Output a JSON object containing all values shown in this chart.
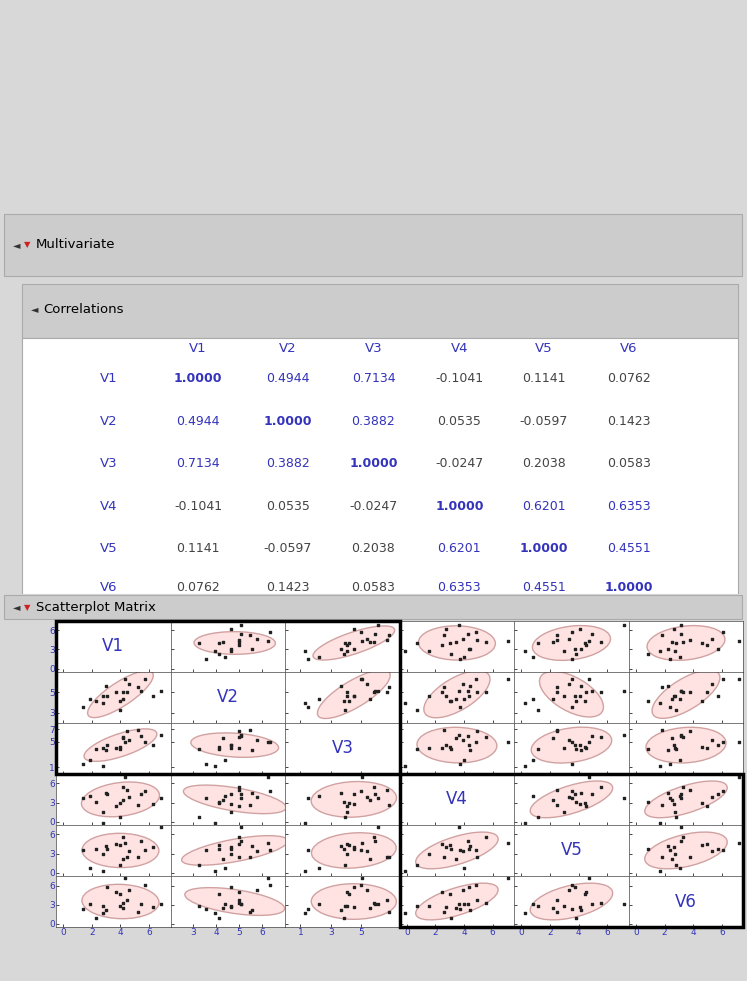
{
  "variables": [
    "V1",
    "V2",
    "V3",
    "V4",
    "V5",
    "V6"
  ],
  "correlations": [
    [
      1.0,
      0.4944,
      0.7134,
      -0.1041,
      0.1141,
      0.0762
    ],
    [
      0.4944,
      1.0,
      0.3882,
      0.0535,
      -0.0597,
      0.1423
    ],
    [
      0.7134,
      0.3882,
      1.0,
      -0.0247,
      0.2038,
      0.0583
    ],
    [
      -0.1041,
      0.0535,
      -0.0247,
      1.0,
      0.6201,
      0.6353
    ],
    [
      0.1141,
      -0.0597,
      0.2038,
      0.6201,
      1.0,
      0.4551
    ],
    [
      0.0762,
      0.1423,
      0.0583,
      0.6353,
      0.4551,
      1.0
    ]
  ],
  "corr_display": [
    [
      "1.0000",
      "0.4944",
      "0.7134",
      "-0.1041",
      "0.1141",
      "0.0762"
    ],
    [
      "0.4944",
      "1.0000",
      "0.3882",
      "0.0535",
      "-0.0597",
      "0.1423"
    ],
    [
      "0.7134",
      "0.3882",
      "1.0000",
      "-0.0247",
      "0.2038",
      "0.0583"
    ],
    [
      "-0.1041",
      "0.0535",
      "-0.0247",
      "1.0000",
      "0.6201",
      "0.6353"
    ],
    [
      "0.1141",
      "-0.0597",
      "0.2038",
      "0.6201",
      "1.0000",
      "0.4551"
    ],
    [
      "0.0762",
      "0.1423",
      "0.0583",
      "0.6353",
      "0.4551",
      "1.0000"
    ]
  ],
  "header_color": "#3333bb",
  "diag_color": "#3333bb",
  "offdiag_color_dark": "#444444",
  "offdiag_color_blue": "#3333bb",
  "ellipse_face": "#ffe0e0",
  "ellipse_edge": "#cc9999",
  "bg_color": "#d8d8d8",
  "panel_header_color": "#cccccc",
  "var_xlim": {
    "V1": [
      -0.5,
      7.5
    ],
    "V2": [
      2.0,
      7.0
    ],
    "V3": [
      0.0,
      7.5
    ],
    "V4": [
      -0.5,
      7.5
    ],
    "V5": [
      -0.5,
      7.5
    ],
    "V6": [
      -0.5,
      7.5
    ]
  },
  "var_ylim": {
    "V1": [
      -0.5,
      7.5
    ],
    "V2": [
      2.0,
      7.0
    ],
    "V3": [
      0.0,
      8.0
    ],
    "V4": [
      -0.5,
      7.5
    ],
    "V5": [
      -0.5,
      7.5
    ],
    "V6": [
      -0.5,
      7.5
    ]
  },
  "x_ticks": {
    "V1": [
      0,
      2,
      4,
      6
    ],
    "V2": [
      3,
      4,
      5,
      6
    ],
    "V3": [
      1,
      3,
      5
    ],
    "V4": [
      0,
      2,
      4,
      6
    ],
    "V5": [
      0,
      2,
      4,
      6
    ],
    "V6": [
      0,
      2,
      4,
      6
    ]
  },
  "y_ticks": {
    "V1": [
      0,
      3,
      6
    ],
    "V2": [
      3,
      5
    ],
    "V3": [
      1,
      5,
      7
    ],
    "V4": [
      0,
      3,
      6
    ],
    "V5": [
      0,
      3,
      6
    ],
    "V6": [
      0,
      3,
      6
    ]
  },
  "x_tick_labels": {
    "V1": [
      "0",
      "2",
      "4",
      "6"
    ],
    "V2": [
      "3",
      "4",
      "5",
      "6"
    ],
    "V3": [
      "1",
      "3",
      "5"
    ],
    "V4": [
      "0",
      "2",
      "4",
      "6"
    ],
    "V5": [
      "0",
      "2",
      "4",
      "6"
    ],
    "V6": [
      "0",
      "2",
      "4",
      "6"
    ]
  },
  "y_tick_labels": {
    "V1": [
      "0",
      "3",
      "6"
    ],
    "V2": [
      "3",
      "5"
    ],
    "V3": [
      "1",
      "5",
      "7"
    ],
    "V4": [
      "0",
      "3",
      "6"
    ],
    "V5": [
      "0",
      "3",
      "6"
    ],
    "V6": [
      "0",
      "3",
      "6"
    ]
  }
}
